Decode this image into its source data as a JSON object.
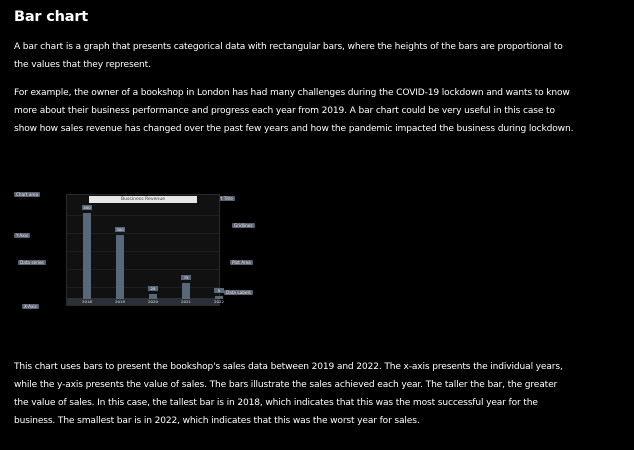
{
  "heading": "Bar chart",
  "paragraphs": [
    "A bar chart is a graph that presents categorical data with rectangular bars, where the heights of the bars are proportional to the values that they represent.",
    "For example, the owner of a bookshop in London has had many challenges during the COVID-19 lockdown and wants to know more about their business performance and progress each year from 2019. A bar chart could be very useful in this case to show how sales revenue has changed over the past few years and how the pandemic impacted the business during lockdown.",
    "This chart uses bars to present the bookshop's sales data between 2019 and 2022. The x-axis presents the individual years, while the y-axis presents the value of sales. The bars illustrate the sales achieved each year. The taller the bar, the greater the value of sales. In this case, the tallest bar is in 2018, which indicates that this was the most successful year for the business. The smallest bar is in 2022, which indicates that this was the worst year for sales."
  ],
  "diagram": {
    "callouts": {
      "chart_area": "Chart area",
      "y_axis": "Y-Axis",
      "data_series": "Data series",
      "x_axis": "X-Axis",
      "chart_title": "Chart Title",
      "gridlines": "Gridlines",
      "plot_area": "Plot Area",
      "data_labels": "Data Labels"
    },
    "chart_data": {
      "type": "bar",
      "title": "Bussiness Revenue",
      "categories": [
        "2018",
        "2019",
        "2020",
        "2021",
        "2022"
      ],
      "values": [
        400,
        300,
        25,
        75,
        5
      ],
      "data_labels": [
        "400",
        "300",
        "25",
        "75",
        "5"
      ],
      "ylim": [
        0,
        430
      ],
      "grid": true,
      "colors": {
        "bar": "#59677a",
        "callout": "#5a6270",
        "title_box": "#e6e6e6"
      }
    }
  }
}
